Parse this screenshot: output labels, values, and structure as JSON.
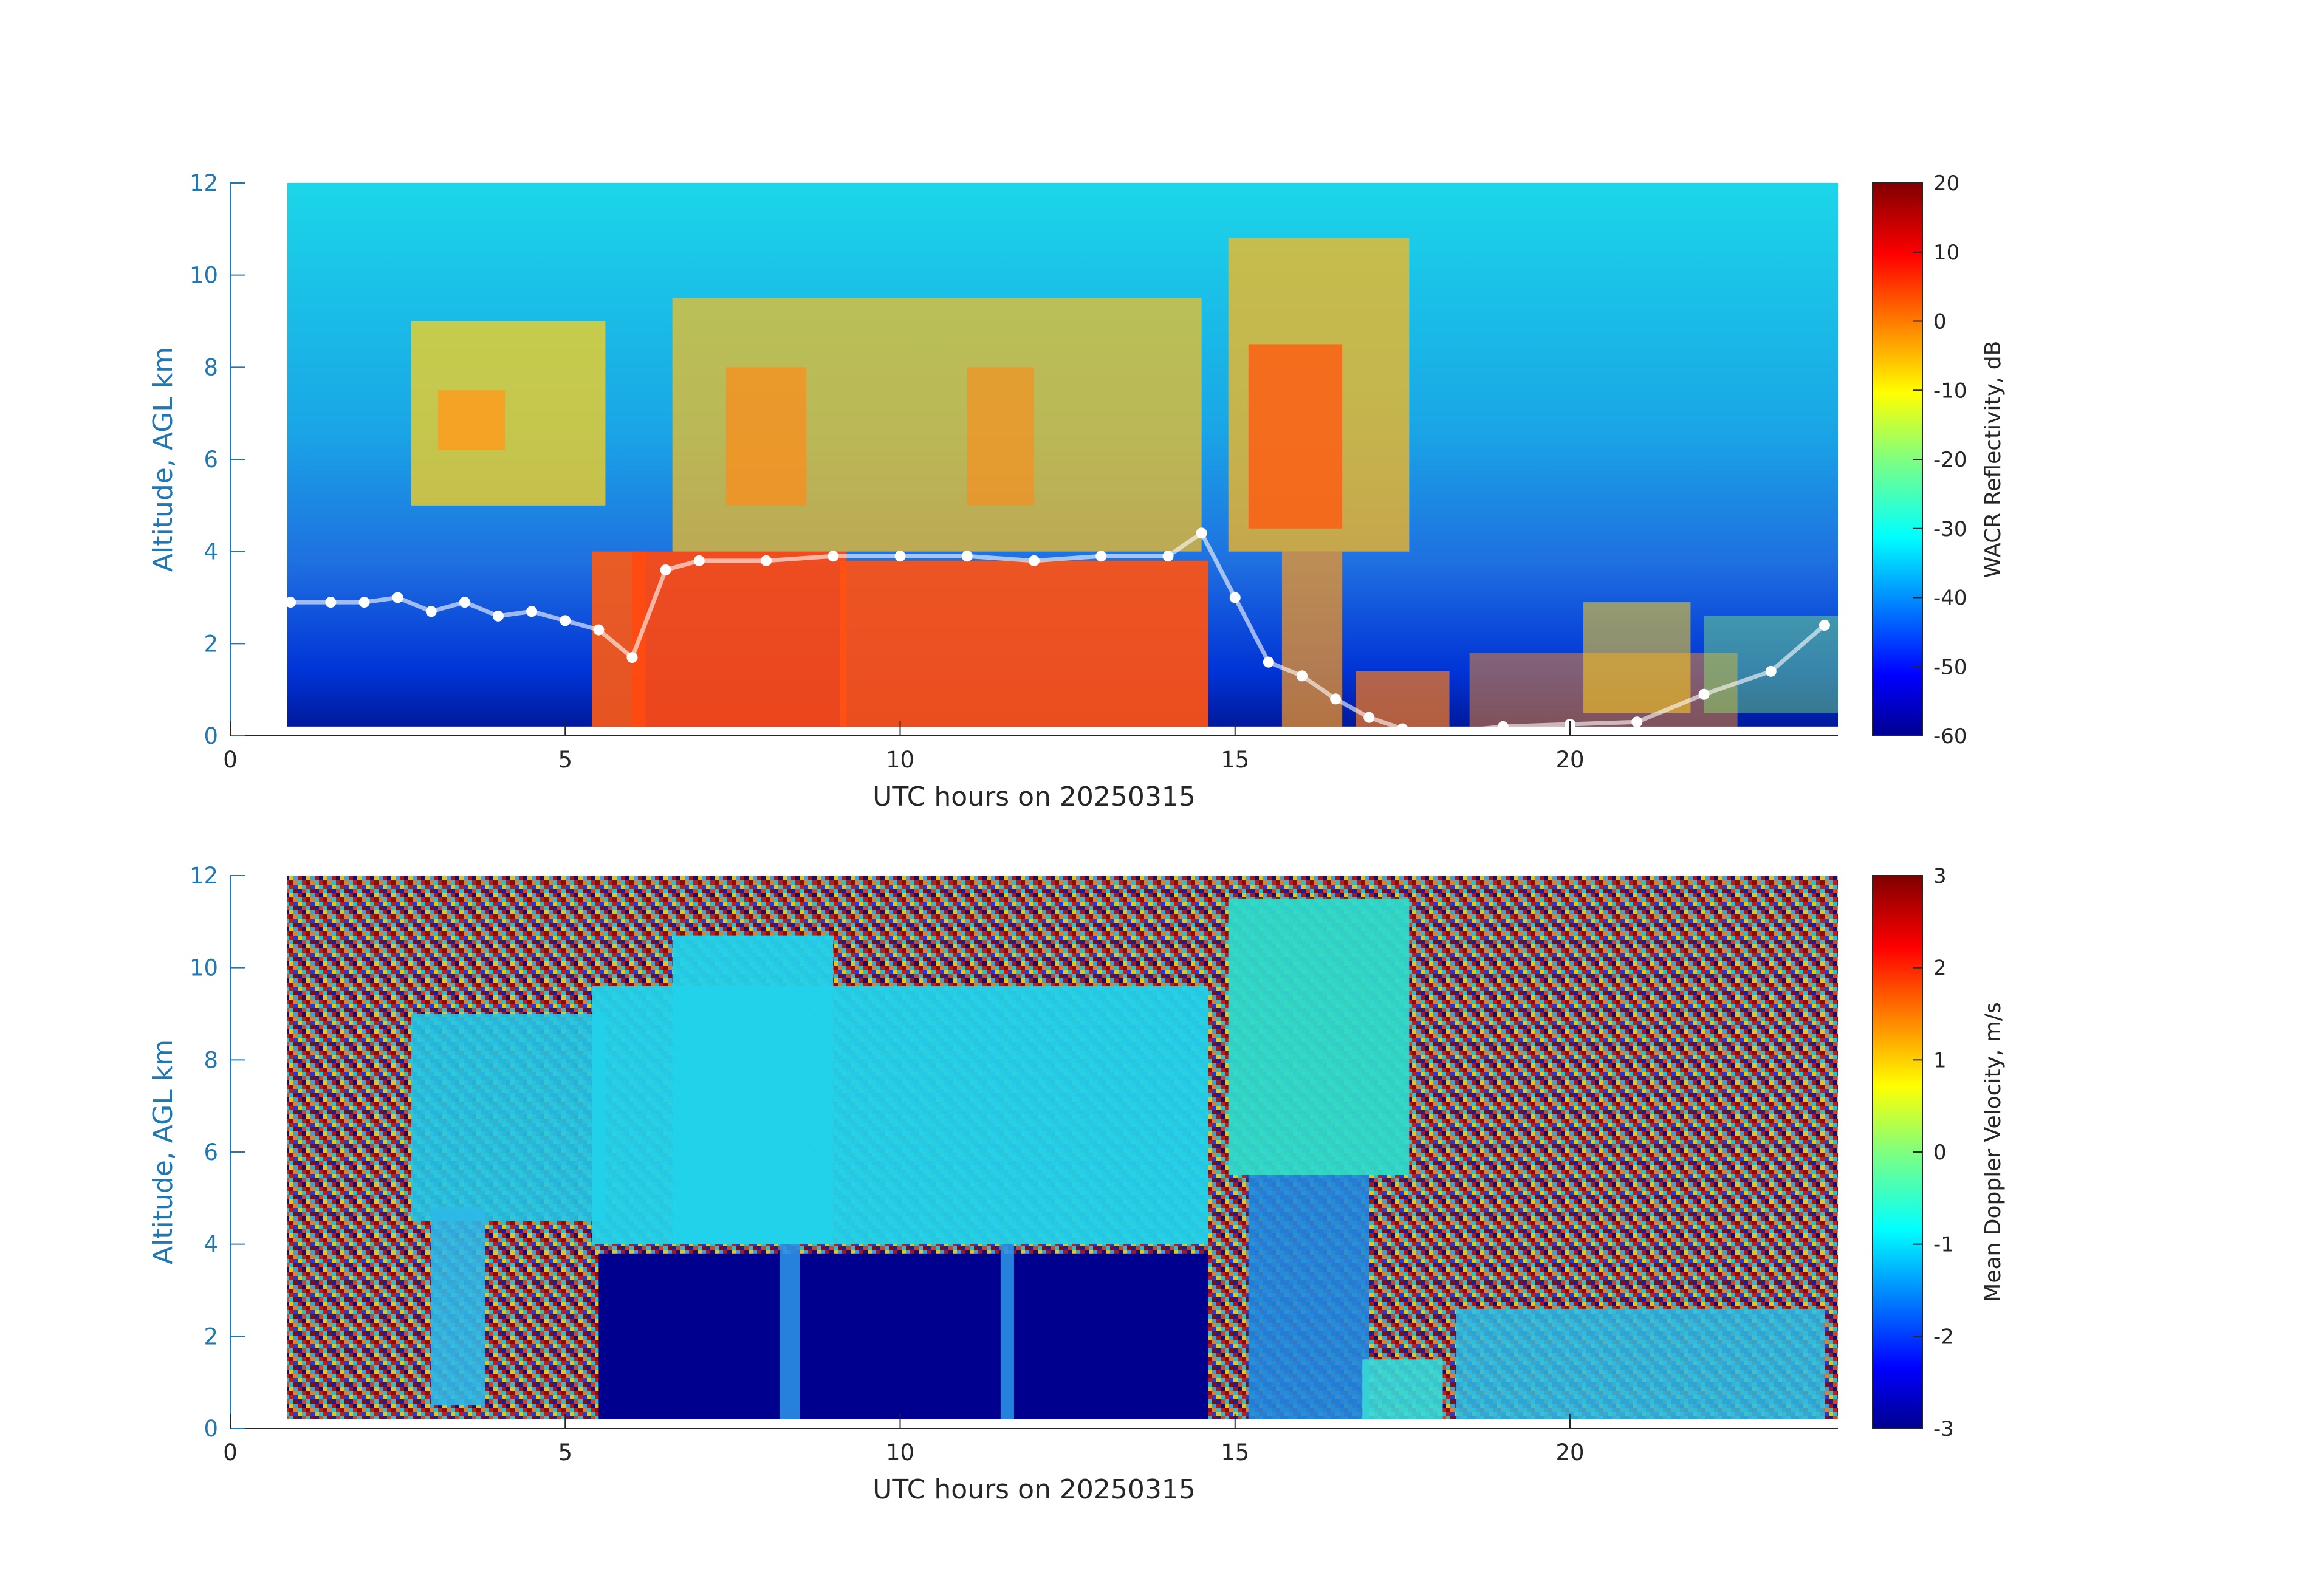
{
  "chart_data": [
    {
      "type": "heatmap",
      "title": "",
      "xlabel": "UTC hours on 20250315",
      "ylabel": "Altitude, AGL km",
      "xlim": [
        0,
        24
      ],
      "ylim": [
        0,
        12
      ],
      "x_ticks": [
        "0",
        "5",
        "10",
        "15",
        "20"
      ],
      "y_ticks": [
        "0",
        "2",
        "4",
        "6",
        "8",
        "10",
        "12"
      ],
      "data_x_range": [
        0.85,
        24.0
      ],
      "colorbar": {
        "label": "WACR Reflectivity, dB",
        "range": [
          -60,
          20
        ],
        "ticks": [
          "-60",
          "-50",
          "-40",
          "-30",
          "-20",
          "-10",
          "0",
          "10",
          "20"
        ],
        "colormap": "jet"
      },
      "overlay": {
        "type": "scatter",
        "color": "#ffffff",
        "x": [
          0.9,
          1.5,
          2.0,
          2.5,
          3.0,
          3.5,
          4.0,
          4.5,
          5.0,
          5.5,
          6.0,
          6.5,
          7.0,
          8.0,
          9.0,
          10.0,
          11.0,
          12.0,
          13.0,
          14.0,
          14.5,
          15.0,
          15.5,
          16.0,
          16.5,
          17.0,
          17.5,
          18.0,
          19.0,
          20.0,
          21.0,
          22.0,
          23.0,
          23.8
        ],
        "y": [
          2.9,
          2.9,
          2.9,
          3.0,
          2.7,
          2.9,
          2.6,
          2.7,
          2.5,
          2.3,
          1.7,
          3.6,
          3.8,
          3.8,
          3.9,
          3.9,
          3.9,
          3.8,
          3.9,
          3.9,
          4.4,
          3.0,
          1.6,
          1.3,
          0.8,
          0.4,
          0.15,
          0.05,
          0.2,
          0.25,
          0.3,
          0.9,
          1.4,
          2.4
        ]
      }
    },
    {
      "type": "heatmap",
      "title": "",
      "xlabel": "UTC hours on 20250315",
      "ylabel": "Altitude, AGL km",
      "xlim": [
        0,
        24
      ],
      "ylim": [
        0,
        12
      ],
      "x_ticks": [
        "0",
        "5",
        "10",
        "15",
        "20"
      ],
      "y_ticks": [
        "0",
        "2",
        "4",
        "6",
        "8",
        "10",
        "12"
      ],
      "data_x_range": [
        0.85,
        24.0
      ],
      "colorbar": {
        "label": "Mean Doppler Velocity, m/s",
        "range": [
          -3,
          3
        ],
        "ticks": [
          "-3",
          "-2",
          "-1",
          "0",
          "1",
          "2",
          "3"
        ],
        "colormap": "jet"
      }
    }
  ]
}
